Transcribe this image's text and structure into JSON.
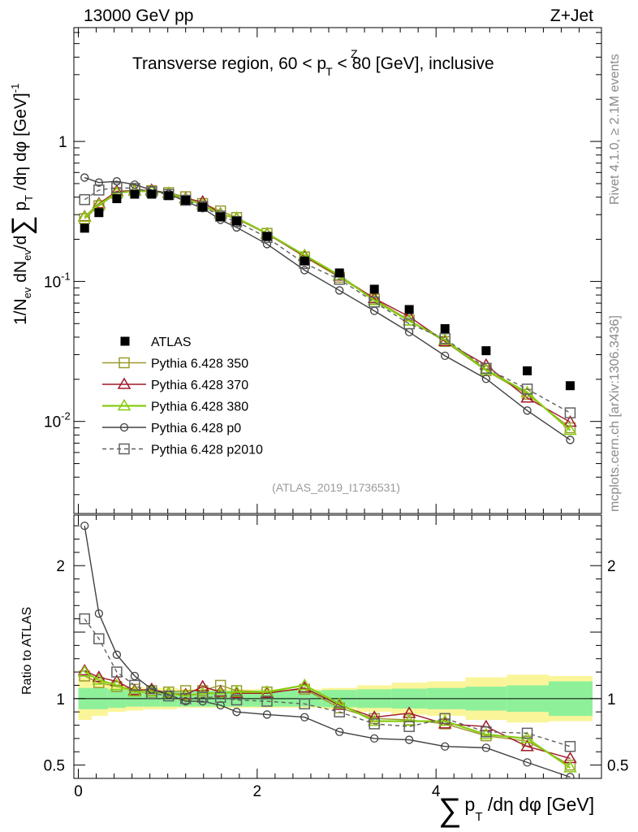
{
  "header": {
    "energy_label": "13000 GeV pp",
    "process_label": "Z+Jet",
    "region_title": "Transverse region, 60 < p",
    "region_title_z": "Z",
    "region_title_t": "T",
    "region_title_tail": " < 80 [GeV], inclusive",
    "side_version": "Rivet 4.1.0, ≥ 2.1M events",
    "side_site": "mcplots.cern.ch [arXiv:1306.3436]",
    "analysis_id": "(ATLAS_2019_I1736531)"
  },
  "axes": {
    "main_ylabel": "1/N",
    "main_ylabel_ev": "ev",
    "main_ylabel_mid": " dN",
    "main_ylabel_mid_ev": "ev",
    "main_ylabel_end": "/d",
    "main_ylabel_sum": "∑",
    "main_ylabel_p": " p",
    "main_ylabel_t": "T",
    "main_ylabel_tail": " /dη dφ  [GeV]",
    "main_ylabel_exp": "-1",
    "ratio_ylabel": "Ratio to ATLAS",
    "xlabel_sum": "∑",
    "xlabel_p": "p",
    "xlabel_t": "T",
    "xlabel_tail": " /dη dφ [GeV]",
    "main_yticks": [
      {
        "label": "10",
        "exp": "-2",
        "value": 0.01
      },
      {
        "label": "10",
        "exp": "-1",
        "value": 0.1
      },
      {
        "label": "1",
        "exp": "",
        "value": 1
      }
    ],
    "ratio_yticks": [
      {
        "label": "0.5",
        "value": 0.5
      },
      {
        "label": "1",
        "value": 1
      },
      {
        "label": "2",
        "value": 2
      }
    ],
    "xticks": [
      {
        "label": "0",
        "value": 0
      },
      {
        "label": "2",
        "value": 2
      },
      {
        "label": "4",
        "value": 4
      }
    ]
  },
  "legend": [
    {
      "key": "atlas",
      "label": "ATLAS"
    },
    {
      "key": "p350",
      "label": "Pythia 6.428 350"
    },
    {
      "key": "p370",
      "label": "Pythia 6.428 370"
    },
    {
      "key": "p380",
      "label": "Pythia 6.428 380"
    },
    {
      "key": "pp0",
      "label": "Pythia 6.428 p0"
    },
    {
      "key": "p2010",
      "label": "Pythia 6.428 p2010"
    }
  ],
  "chart_data": {
    "type": "line",
    "title": "Transverse region, 60 < pT(Z) < 80 [GeV], inclusive",
    "xlabel": "∑ pT /dη dφ [GeV]",
    "ylabel": "1/Nev dNev/d∑ pT /dη dφ [GeV]^-1",
    "ratio_ylabel": "Ratio to ATLAS",
    "xlim": [
      -0.05,
      5.85
    ],
    "ylim": [
      0.0022,
      6.5
    ],
    "yscale": "log",
    "ratio_ylim": [
      0.4,
      2.38
    ],
    "x": [
      0.07,
      0.23,
      0.43,
      0.63,
      0.82,
      1.01,
      1.2,
      1.39,
      1.59,
      1.77,
      2.11,
      2.53,
      2.92,
      3.31,
      3.7,
      4.1,
      4.56,
      5.02,
      5.5
    ],
    "atlas": {
      "values": [
        0.24,
        0.31,
        0.39,
        0.42,
        0.42,
        0.41,
        0.38,
        0.34,
        0.29,
        0.27,
        0.21,
        0.14,
        0.115,
        0.088,
        0.063,
        0.046,
        0.032,
        0.023,
        0.018
      ],
      "band_inner": [
        0.08,
        0.08,
        0.07,
        0.06,
        0.06,
        0.06,
        0.06,
        0.06,
        0.06,
        0.06,
        0.06,
        0.06,
        0.065,
        0.07,
        0.075,
        0.08,
        0.09,
        0.1,
        0.13
      ],
      "band_outer": [
        0.16,
        0.13,
        0.1,
        0.09,
        0.08,
        0.08,
        0.07,
        0.07,
        0.07,
        0.07,
        0.07,
        0.07,
        0.08,
        0.1,
        0.12,
        0.13,
        0.16,
        0.18,
        0.17
      ]
    },
    "series": [
      {
        "key": "p350",
        "name": "Pythia 6.428 350",
        "color": "#9a9a2e",
        "marker": "square-open",
        "dash": false,
        "ratio": [
          1.17,
          1.12,
          1.09,
          1.07,
          1.06,
          1.05,
          1.06,
          1.06,
          1.1,
          1.06,
          1.05,
          1.07,
          0.93,
          0.85,
          0.84,
          0.81,
          0.72,
          0.68,
          0.5
        ]
      },
      {
        "key": "p370",
        "name": "Pythia 6.428 370",
        "color": "#a0182a",
        "marker": "triangle-open",
        "dash": false,
        "ratio": [
          1.21,
          1.16,
          1.13,
          1.06,
          1.07,
          1.04,
          1.03,
          1.09,
          1.05,
          1.04,
          1.04,
          1.08,
          0.95,
          0.86,
          0.89,
          0.81,
          0.79,
          0.64,
          0.55
        ]
      },
      {
        "key": "p380",
        "name": "Pythia 6.428 380",
        "color": "#88cc11",
        "marker": "triangle-open",
        "dash": false,
        "ratio": [
          1.2,
          1.14,
          1.1,
          1.05,
          1.05,
          1.04,
          1.02,
          1.04,
          1.04,
          1.05,
          1.05,
          1.1,
          0.96,
          0.83,
          0.83,
          0.83,
          0.73,
          0.7,
          0.48
        ]
      },
      {
        "key": "pp0",
        "name": "Pythia 6.428 p0",
        "color": "#404040",
        "marker": "circle-open",
        "dash": false,
        "ratio": [
          2.3,
          1.64,
          1.33,
          1.17,
          1.07,
          1.03,
          0.98,
          0.98,
          0.95,
          0.9,
          0.88,
          0.86,
          0.75,
          0.7,
          0.69,
          0.64,
          0.63,
          0.52,
          0.41
        ]
      },
      {
        "key": "p2010",
        "name": "Pythia 6.428 p2010",
        "color": "#606060",
        "marker": "square-open",
        "dash": true,
        "ratio": [
          1.6,
          1.45,
          1.2,
          1.1,
          1.04,
          1.02,
          1.0,
          1.01,
          1.01,
          0.99,
          0.98,
          0.96,
          0.9,
          0.81,
          0.79,
          0.85,
          0.75,
          0.74,
          0.64
        ]
      }
    ]
  }
}
